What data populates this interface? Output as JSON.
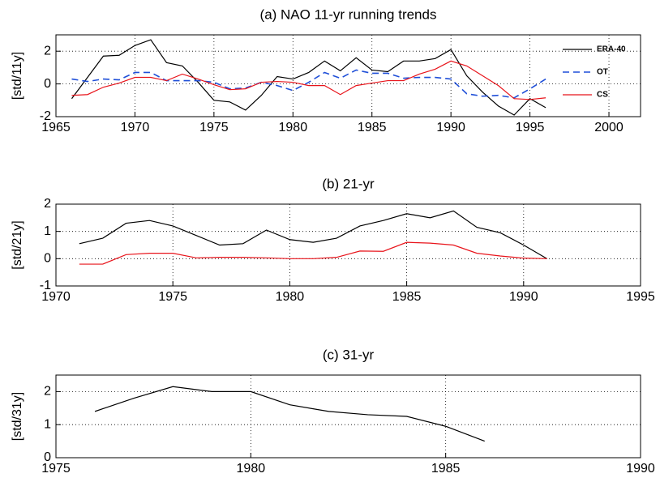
{
  "chart_data": [
    {
      "type": "line",
      "title": "(a) NAO 11-yr running trends",
      "y_label": "[std/11y]",
      "x": [
        1966,
        1967,
        1968,
        1969,
        1970,
        1971,
        1972,
        1973,
        1974,
        1975,
        1976,
        1977,
        1978,
        1979,
        1980,
        1981,
        1982,
        1983,
        1984,
        1985,
        1986,
        1987,
        1988,
        1989,
        1990,
        1991,
        1992,
        1993,
        1994,
        1995,
        1996
      ],
      "series": [
        {
          "name": "ERA-40",
          "color": "#000000",
          "dashed": false,
          "values": [
            -0.9,
            0.4,
            1.7,
            1.75,
            2.35,
            2.7,
            1.3,
            1.1,
            0.1,
            -1.0,
            -1.1,
            -1.6,
            -0.7,
            0.45,
            0.3,
            0.7,
            1.4,
            0.8,
            1.6,
            0.85,
            0.75,
            1.4,
            1.4,
            1.55,
            2.1,
            0.5,
            -0.5,
            -1.35,
            -1.9,
            -0.9,
            -1.45
          ]
        },
        {
          "name": "OT",
          "color": "#1f4fd8",
          "dashed": true,
          "values": [
            0.3,
            0.15,
            0.3,
            0.25,
            0.7,
            0.7,
            0.2,
            0.2,
            0.2,
            0.1,
            -0.3,
            -0.25,
            0.1,
            -0.1,
            -0.4,
            0.1,
            0.7,
            0.35,
            0.85,
            0.65,
            0.65,
            0.35,
            0.4,
            0.4,
            0.3,
            -0.6,
            -0.75,
            -0.7,
            -0.85,
            -0.3,
            0.3
          ]
        },
        {
          "name": "CS",
          "color": "#e8141b",
          "dashed": false,
          "values": [
            -0.7,
            -0.65,
            -0.2,
            0.05,
            0.4,
            0.4,
            0.2,
            0.6,
            0.3,
            -0.05,
            -0.35,
            -0.3,
            0.1,
            0.15,
            0.1,
            -0.1,
            -0.1,
            -0.65,
            -0.1,
            0.05,
            0.2,
            0.2,
            0.6,
            0.9,
            1.4,
            1.1,
            0.5,
            -0.1,
            -0.9,
            -0.95,
            -0.85
          ]
        }
      ],
      "xlim": [
        1965,
        2002
      ],
      "xticks": [
        1965,
        1970,
        1975,
        1980,
        1985,
        1990,
        1995,
        2000
      ],
      "ylim": [
        -2,
        3
      ],
      "yticks": [
        -2,
        0,
        2
      ],
      "grid": true,
      "legend": "upper right"
    },
    {
      "type": "line",
      "title": "(b) 21-yr",
      "y_label": "[std/21y]",
      "x": [
        1971,
        1972,
        1973,
        1974,
        1975,
        1976,
        1977,
        1978,
        1979,
        1980,
        1981,
        1982,
        1983,
        1984,
        1985,
        1986,
        1987,
        1988,
        1989,
        1990,
        1991
      ],
      "series": [
        {
          "color": "#000000",
          "dashed": false,
          "values": [
            0.55,
            0.75,
            1.3,
            1.4,
            1.2,
            0.85,
            0.5,
            0.55,
            1.05,
            0.7,
            0.6,
            0.75,
            1.2,
            1.4,
            1.65,
            1.5,
            1.75,
            1.15,
            0.95,
            0.5,
            0
          ]
        },
        {
          "color": "#e8141b",
          "dashed": false,
          "values": [
            -0.2,
            -0.2,
            0.15,
            0.2,
            0.2,
            0.03,
            0.05,
            0.05,
            0.03,
            0,
            0,
            0.05,
            0.28,
            0.27,
            0.6,
            0.57,
            0.5,
            0.2,
            0.1,
            0.02,
            0
          ]
        }
      ],
      "xlim": [
        1970,
        1995
      ],
      "xticks": [
        1970,
        1975,
        1980,
        1985,
        1990,
        1995
      ],
      "ylim": [
        -1,
        2
      ],
      "yticks": [
        -1,
        0,
        1,
        2
      ],
      "grid": true
    },
    {
      "type": "line",
      "title": "(c) 31-yr",
      "y_label": "[std/31y]",
      "x": [
        1976,
        1977,
        1978,
        1979,
        1980,
        1981,
        1982,
        1983,
        1984,
        1985,
        1986
      ],
      "series": [
        {
          "color": "#000000",
          "dashed": false,
          "values": [
            1.4,
            1.8,
            2.15,
            2.0,
            2.0,
            1.6,
            1.4,
            1.3,
            1.25,
            0.95,
            0.5
          ]
        }
      ],
      "xlim": [
        1975,
        1990
      ],
      "xticks": [
        1975,
        1980,
        1985,
        1990
      ],
      "ylim": [
        0,
        2.5
      ],
      "yticks": [
        0,
        1,
        2
      ],
      "grid": true
    }
  ]
}
